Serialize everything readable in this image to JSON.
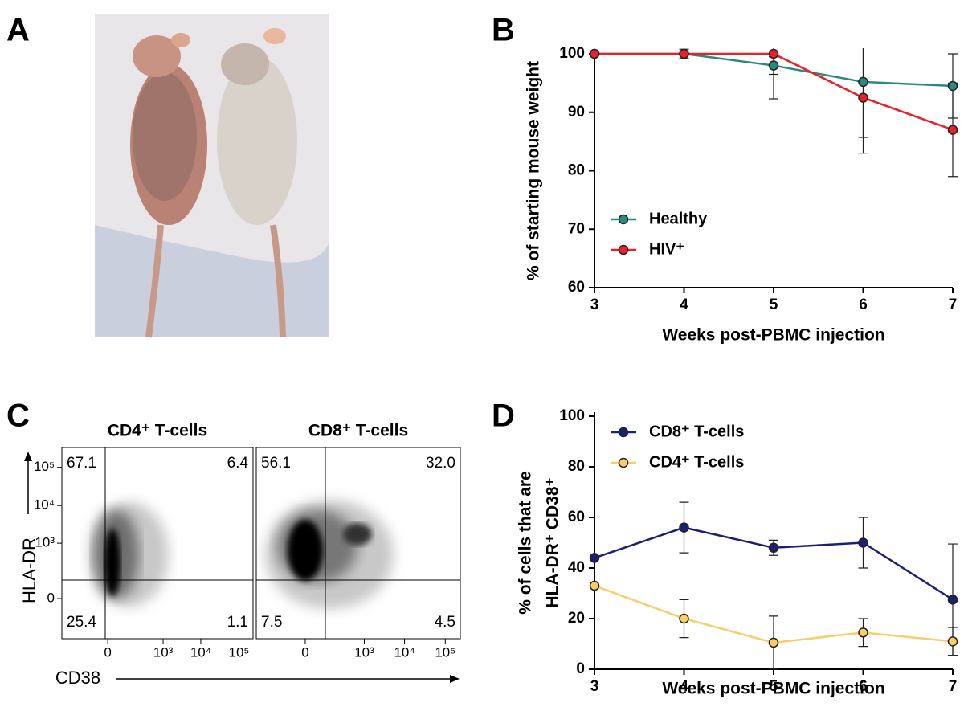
{
  "panel_labels": [
    "A",
    "B",
    "C",
    "D"
  ],
  "chart_data": [
    {
      "type": "line",
      "xlabel": "Weeks post-PBMC injection",
      "ylabel": "% of starting mouse weight",
      "x": [
        3,
        4,
        5,
        6,
        7
      ],
      "xlim": [
        3,
        7
      ],
      "xticks": [
        3,
        4,
        5,
        6,
        7
      ],
      "ylim": [
        60,
        100
      ],
      "yticks": [
        60,
        70,
        80,
        90,
        100
      ],
      "legend": "lower left",
      "series": [
        {
          "name": "Healthy",
          "color": "#2b8a7f",
          "values": [
            100,
            100,
            98,
            95.2,
            94.5
          ],
          "errors": [
            0,
            0.8,
            1.5,
            9.5,
            5.5
          ]
        },
        {
          "name": "HIV⁺",
          "color": "#e8202a",
          "values": [
            100,
            100,
            100,
            92.5,
            87
          ],
          "errors": [
            0,
            0,
            7.7,
            9.5,
            8
          ]
        }
      ]
    },
    {
      "type": "flow",
      "xlabel": "CD38",
      "ylabel": "HLA-DR",
      "xticks": [
        {
          "value": 0,
          "label": "0"
        },
        {
          "value": 1000,
          "label": "10³"
        },
        {
          "value": 10000,
          "label": "10⁴"
        },
        {
          "value": 100000,
          "label": "10⁵"
        }
      ],
      "yticks": [
        {
          "value": 0,
          "label": "0"
        },
        {
          "value": 1000,
          "label": "10³"
        },
        {
          "value": 10000,
          "label": "10⁴"
        },
        {
          "value": 100000,
          "label": "10⁵"
        }
      ],
      "panels": [
        {
          "title": "CD4⁺ T-cells",
          "values": [
            67.1,
            6.4,
            25.4,
            1.1
          ],
          "value_labels": [
            "67.1",
            "6.4",
            "25.4",
            "1.1"
          ]
        },
        {
          "title": "CD8⁺ T-cells",
          "values": [
            56.1,
            32,
            7.5,
            4.5
          ],
          "value_labels": [
            "56.1",
            "32.0",
            "7.5",
            "4.5"
          ]
        }
      ]
    },
    {
      "type": "line",
      "xlabel": "Weeks post-PBMC injection",
      "ylabel": [
        "% of cells that are",
        "HLA-DR⁺ CD38⁺"
      ],
      "x": [
        3,
        4,
        5,
        6,
        7
      ],
      "xlim": [
        3,
        7
      ],
      "xticks": [
        3,
        4,
        5,
        6,
        7
      ],
      "ylim": [
        0,
        100
      ],
      "yticks": [
        0,
        20,
        40,
        60,
        80,
        100
      ],
      "legend": "upper left",
      "series": [
        {
          "name": "CD8⁺ T-cells",
          "color": "#1c2070",
          "values": [
            44,
            56,
            48,
            50,
            27.5
          ],
          "errors": [
            0,
            10,
            3,
            10,
            22
          ]
        },
        {
          "name": "CD4⁺ T-cells",
          "color": "#f7cf6a",
          "values": [
            33,
            20,
            10.5,
            14.5,
            11
          ],
          "errors": [
            0,
            7.5,
            10.5,
            5.5,
            5.5
          ]
        }
      ]
    }
  ]
}
